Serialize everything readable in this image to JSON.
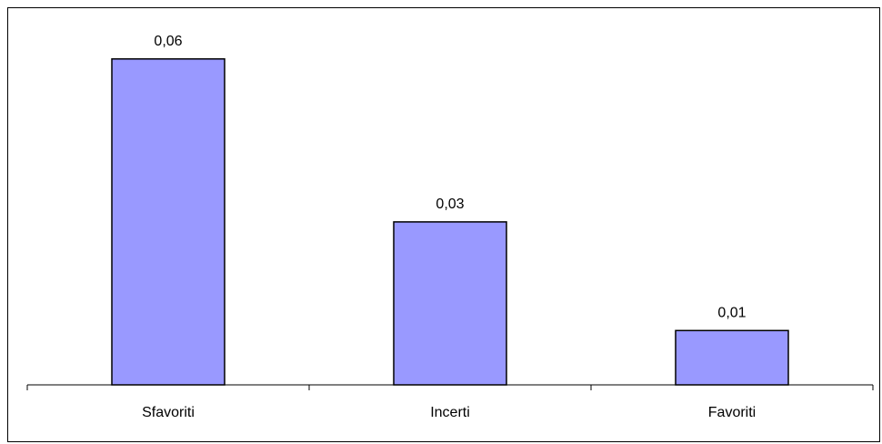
{
  "chart_data": {
    "type": "bar",
    "categories": [
      "Sfavoriti",
      "Incerti",
      "Favoriti"
    ],
    "values": [
      0.06,
      0.03,
      0.01
    ],
    "value_labels": [
      "0,06",
      "0,03",
      "0,01"
    ],
    "title": "",
    "xlabel": "",
    "ylabel": "",
    "ylim": [
      0,
      0.0675
    ],
    "grid": false,
    "legend": "none",
    "colors": {
      "bar_fill": "#9999ff",
      "bar_stroke": "#000000",
      "axis": "#000000"
    }
  }
}
